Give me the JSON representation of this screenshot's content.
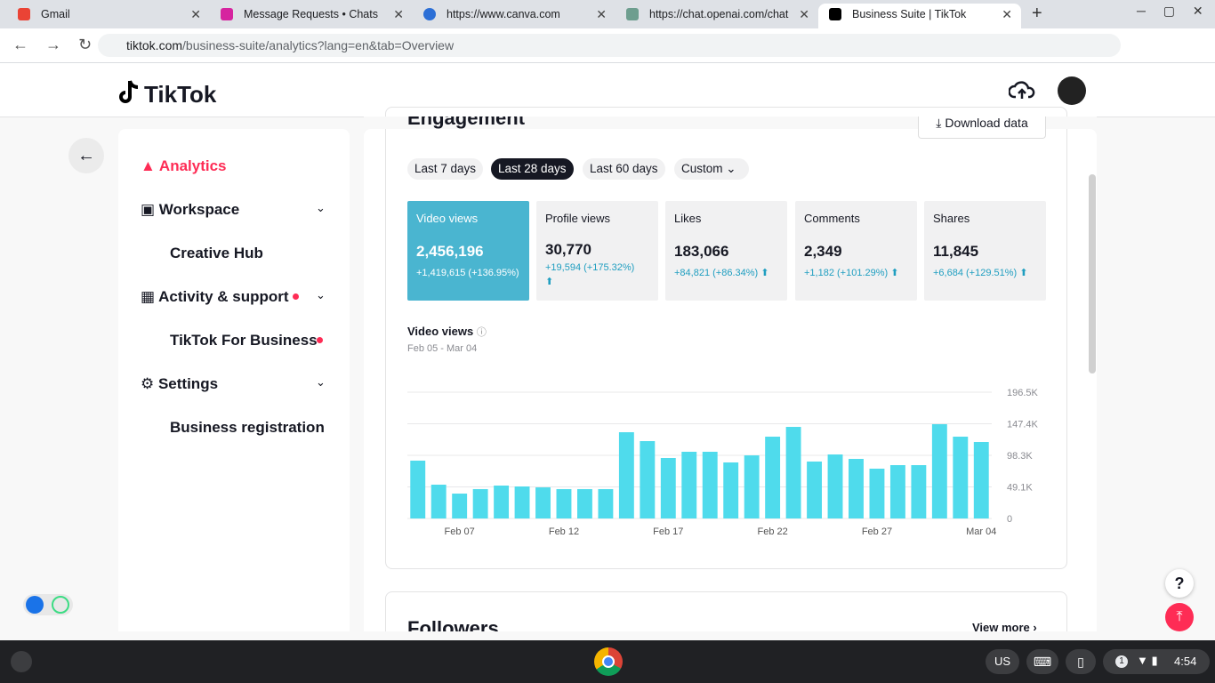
{
  "browser": {
    "tabs": [
      "Gmail",
      "Message Requests • Chats",
      "https://www.canva.com",
      "https://chat.openai.com/chat",
      "Business Suite | TikTok"
    ],
    "url_host": "tiktok.com",
    "url_path": "/business-suite/analytics?lang=en&tab=Overview"
  },
  "header": {
    "logo": "TikTok"
  },
  "sidebar": [
    "Analytics",
    "Workspace",
    "Creative Hub",
    "Activity & support",
    "TikTok For Business",
    "Settings",
    "Business registration"
  ],
  "engagement": {
    "title": "Engagement",
    "download": "Download data",
    "ranges": [
      "Last 7 days",
      "Last 28 days",
      "Last 60 days",
      "Custom"
    ],
    "metrics": [
      {
        "name": "Video views",
        "value": "2,456,196",
        "change": "+1,419,615 (+136.95%)"
      },
      {
        "name": "Profile views",
        "value": "30,770",
        "change": "+19,594 (+175.32%)"
      },
      {
        "name": "Likes",
        "value": "183,066",
        "change": "+84,821 (+86.34%)"
      },
      {
        "name": "Comments",
        "value": "2,349",
        "change": "+1,182 (+101.29%)"
      },
      {
        "name": "Shares",
        "value": "11,845",
        "change": "+6,684 (+129.51%)"
      }
    ]
  },
  "chart_data": {
    "type": "bar",
    "title": "Video views",
    "subtitle": "Feb 05 - Mar 04",
    "categories": [
      null,
      null,
      "Feb 07",
      null,
      null,
      null,
      null,
      "Feb 12",
      null,
      null,
      null,
      null,
      "Feb 17",
      null,
      null,
      null,
      null,
      "Feb 22",
      null,
      null,
      null,
      null,
      "Feb 27",
      null,
      null,
      null,
      null,
      "Mar 04"
    ],
    "values": [
      90000,
      52600,
      38700,
      45700,
      51200,
      49800,
      48400,
      45700,
      45700,
      45700,
      134200,
      120400,
      94100,
      103800,
      103800,
      87200,
      98200,
      127300,
      142500,
      88600,
      99600,
      92700,
      77500,
      83000,
      83000,
      146700,
      127300,
      119000
    ],
    "color": "#4fdbec",
    "ylim": [
      0,
      196500
    ],
    "yticks": [
      0,
      {
        "value": 49125,
        "label": "49.1K"
      },
      {
        "value": 98250,
        "label": "98.3K"
      },
      {
        "value": 147375,
        "label": "147.4K"
      },
      {
        "value": 196500,
        "label": "196.5K"
      }
    ],
    "grid": true
  },
  "followers": {
    "title": "Followers",
    "link": "View more"
  },
  "taskbar": {
    "lang": "US",
    "badge": "1",
    "time": "4:54"
  }
}
